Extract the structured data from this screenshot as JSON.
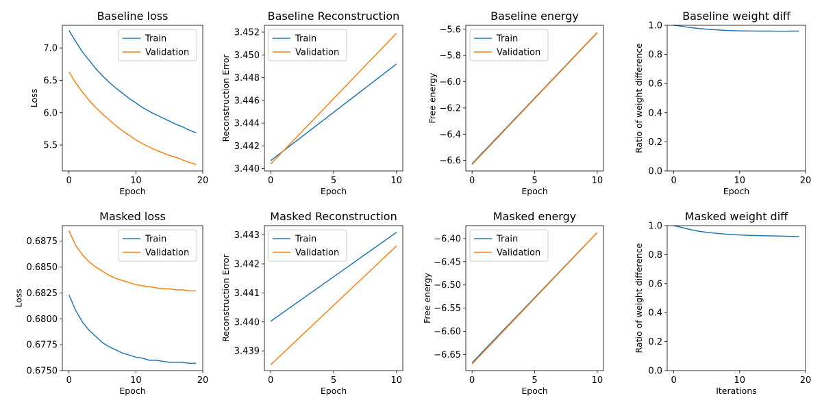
{
  "chart_data": [
    {
      "type": "line",
      "title": "Baseline loss",
      "xlabel": "Epoch",
      "ylabel": "Loss",
      "xlim": [
        -1,
        20
      ],
      "ylim": [
        5.1,
        7.35
      ],
      "xticks": [
        0,
        10,
        20
      ],
      "yticks": [
        5.5,
        6.0,
        6.5,
        7.0
      ],
      "ytick_decimals": 1,
      "legend": "top-right",
      "grid": false,
      "series": [
        {
          "name": "Train",
          "color": "#1f77b4",
          "x": [
            0,
            1,
            2,
            3,
            4,
            5,
            6,
            7,
            8,
            9,
            10,
            11,
            12,
            13,
            14,
            15,
            16,
            17,
            18,
            19
          ],
          "values": [
            7.27,
            7.1,
            6.94,
            6.81,
            6.68,
            6.57,
            6.47,
            6.38,
            6.3,
            6.22,
            6.15,
            6.08,
            6.02,
            5.97,
            5.92,
            5.87,
            5.82,
            5.78,
            5.73,
            5.69
          ]
        },
        {
          "name": "Validation",
          "color": "#ff7f0e",
          "x": [
            0,
            1,
            2,
            3,
            4,
            5,
            6,
            7,
            8,
            9,
            10,
            11,
            12,
            13,
            14,
            15,
            16,
            17,
            18,
            19
          ],
          "values": [
            6.63,
            6.46,
            6.32,
            6.19,
            6.08,
            5.98,
            5.89,
            5.8,
            5.72,
            5.65,
            5.58,
            5.52,
            5.47,
            5.42,
            5.38,
            5.34,
            5.31,
            5.27,
            5.23,
            5.2
          ]
        }
      ]
    },
    {
      "type": "line",
      "title": "Baseline Reconstruction",
      "xlabel": "Epoch",
      "ylabel": "Reconstruction Error",
      "xlim": [
        -0.5,
        10.5
      ],
      "ylim": [
        3.4398,
        3.4526
      ],
      "xticks": [
        0,
        5,
        10
      ],
      "yticks": [
        3.44,
        3.442,
        3.444,
        3.446,
        3.448,
        3.45,
        3.452
      ],
      "ytick_decimals": 3,
      "legend": "top-left",
      "grid": false,
      "series": [
        {
          "name": "Train",
          "color": "#1f77b4",
          "x": [
            0,
            10
          ],
          "values": [
            3.4407,
            3.4492
          ]
        },
        {
          "name": "Validation",
          "color": "#ff7f0e",
          "x": [
            0,
            10
          ],
          "values": [
            3.4404,
            3.4519
          ]
        }
      ]
    },
    {
      "type": "line",
      "title": "Baseline energy",
      "xlabel": "Epoch",
      "ylabel": "Free energy",
      "xlim": [
        -0.5,
        10.5
      ],
      "ylim": [
        -6.68,
        -5.57
      ],
      "xticks": [
        0,
        5,
        10
      ],
      "yticks": [
        -6.6,
        -6.4,
        -6.2,
        -6.0,
        -5.8,
        -5.6
      ],
      "ytick_decimals": 1,
      "legend": "top-left",
      "grid": false,
      "series": [
        {
          "name": "Train",
          "color": "#1f77b4",
          "x": [
            0,
            10
          ],
          "values": [
            -6.625,
            -5.625
          ]
        },
        {
          "name": "Validation",
          "color": "#ff7f0e",
          "x": [
            0,
            10
          ],
          "values": [
            -6.632,
            -5.627
          ]
        }
      ]
    },
    {
      "type": "line",
      "title": "Baseline weight diff",
      "xlabel": "Epoch",
      "ylabel": "Ratio of weight difference",
      "xlim": [
        -1,
        20
      ],
      "ylim": [
        0,
        1.0
      ],
      "xticks": [
        0,
        10,
        20
      ],
      "yticks": [
        0.0,
        0.2,
        0.4,
        0.6,
        0.8,
        1.0
      ],
      "ytick_decimals": 1,
      "legend": "none",
      "grid": false,
      "series": [
        {
          "name": "",
          "color": "#1f77b4",
          "x": [
            0,
            1,
            2,
            3,
            4,
            5,
            6,
            7,
            8,
            9,
            10,
            11,
            12,
            13,
            14,
            15,
            16,
            17,
            18,
            19
          ],
          "values": [
            1.0,
            0.995,
            0.988,
            0.982,
            0.977,
            0.973,
            0.97,
            0.967,
            0.965,
            0.963,
            0.962,
            0.961,
            0.9605,
            0.96,
            0.96,
            0.9598,
            0.9597,
            0.9597,
            0.9598,
            0.96
          ]
        }
      ]
    },
    {
      "type": "line",
      "title": "Masked loss",
      "xlabel": "Epoch",
      "ylabel": "Loss",
      "xlim": [
        -1,
        20
      ],
      "ylim": [
        0.675,
        0.689
      ],
      "xticks": [
        0,
        10,
        20
      ],
      "yticks": [
        0.675,
        0.6775,
        0.68,
        0.6825,
        0.685,
        0.6875
      ],
      "ytick_decimals": 4,
      "legend": "top-right",
      "grid": false,
      "series": [
        {
          "name": "Train",
          "color": "#1f77b4",
          "x": [
            0,
            1,
            2,
            3,
            4,
            5,
            6,
            7,
            8,
            9,
            10,
            11,
            12,
            13,
            14,
            15,
            16,
            17,
            18,
            19
          ],
          "values": [
            0.6823,
            0.6808,
            0.6797,
            0.6789,
            0.6783,
            0.6777,
            0.6773,
            0.677,
            0.6767,
            0.6765,
            0.6763,
            0.6762,
            0.676,
            0.676,
            0.6759,
            0.6758,
            0.6758,
            0.6758,
            0.6757,
            0.6757
          ]
        },
        {
          "name": "Validation",
          "color": "#ff7f0e",
          "x": [
            0,
            1,
            2,
            3,
            4,
            5,
            6,
            7,
            8,
            9,
            10,
            11,
            12,
            13,
            14,
            15,
            16,
            17,
            18,
            19
          ],
          "values": [
            0.6885,
            0.6871,
            0.6862,
            0.6855,
            0.685,
            0.6846,
            0.6842,
            0.6839,
            0.6837,
            0.6835,
            0.6833,
            0.6832,
            0.6831,
            0.683,
            0.6829,
            0.6829,
            0.6828,
            0.6828,
            0.6827,
            0.6827
          ]
        }
      ]
    },
    {
      "type": "line",
      "title": "Masked Reconstruction",
      "xlabel": "Epoch",
      "ylabel": "Reconstruction Error",
      "xlim": [
        -0.5,
        10.5
      ],
      "ylim": [
        3.43832,
        3.44332
      ],
      "xticks": [
        0,
        5,
        10
      ],
      "yticks": [
        3.439,
        3.44,
        3.441,
        3.442,
        3.443
      ],
      "ytick_decimals": 3,
      "legend": "top-left",
      "grid": false,
      "series": [
        {
          "name": "Train",
          "color": "#1f77b4",
          "x": [
            0,
            10
          ],
          "values": [
            3.44002,
            3.44309
          ]
        },
        {
          "name": "Validation",
          "color": "#ff7f0e",
          "x": [
            0,
            10
          ],
          "values": [
            3.43852,
            3.44262
          ]
        }
      ]
    },
    {
      "type": "line",
      "title": "Masked energy",
      "xlabel": "Epoch",
      "ylabel": "Free energy",
      "xlim": [
        -0.5,
        10.5
      ],
      "ylim": [
        -6.685,
        -6.372
      ],
      "xticks": [
        0,
        5,
        10
      ],
      "yticks": [
        -6.65,
        -6.6,
        -6.55,
        -6.5,
        -6.45,
        -6.4
      ],
      "ytick_decimals": 2,
      "legend": "top-left",
      "grid": false,
      "series": [
        {
          "name": "Train",
          "color": "#1f77b4",
          "x": [
            0,
            10
          ],
          "values": [
            -6.668,
            -6.387
          ]
        },
        {
          "name": "Validation",
          "color": "#ff7f0e",
          "x": [
            0,
            10
          ],
          "values": [
            -6.671,
            -6.387
          ]
        }
      ]
    },
    {
      "type": "line",
      "title": "Masked weight diff",
      "xlabel": "Iterations",
      "ylabel": "Ratio of weight difference",
      "xlim": [
        -1,
        20
      ],
      "ylim": [
        0,
        1.0
      ],
      "xticks": [
        0,
        10,
        20
      ],
      "yticks": [
        0.0,
        0.2,
        0.4,
        0.6,
        0.8,
        1.0
      ],
      "ytick_decimals": 1,
      "legend": "none",
      "grid": false,
      "series": [
        {
          "name": "",
          "color": "#1f77b4",
          "x": [
            0,
            1,
            2,
            3,
            4,
            5,
            6,
            7,
            8,
            9,
            10,
            11,
            12,
            13,
            14,
            15,
            16,
            17,
            18,
            19
          ],
          "values": [
            1.0,
            0.99,
            0.978,
            0.968,
            0.96,
            0.954,
            0.949,
            0.945,
            0.941,
            0.938,
            0.936,
            0.934,
            0.932,
            0.931,
            0.93,
            0.929,
            0.928,
            0.927,
            0.926,
            0.925
          ]
        }
      ]
    }
  ]
}
